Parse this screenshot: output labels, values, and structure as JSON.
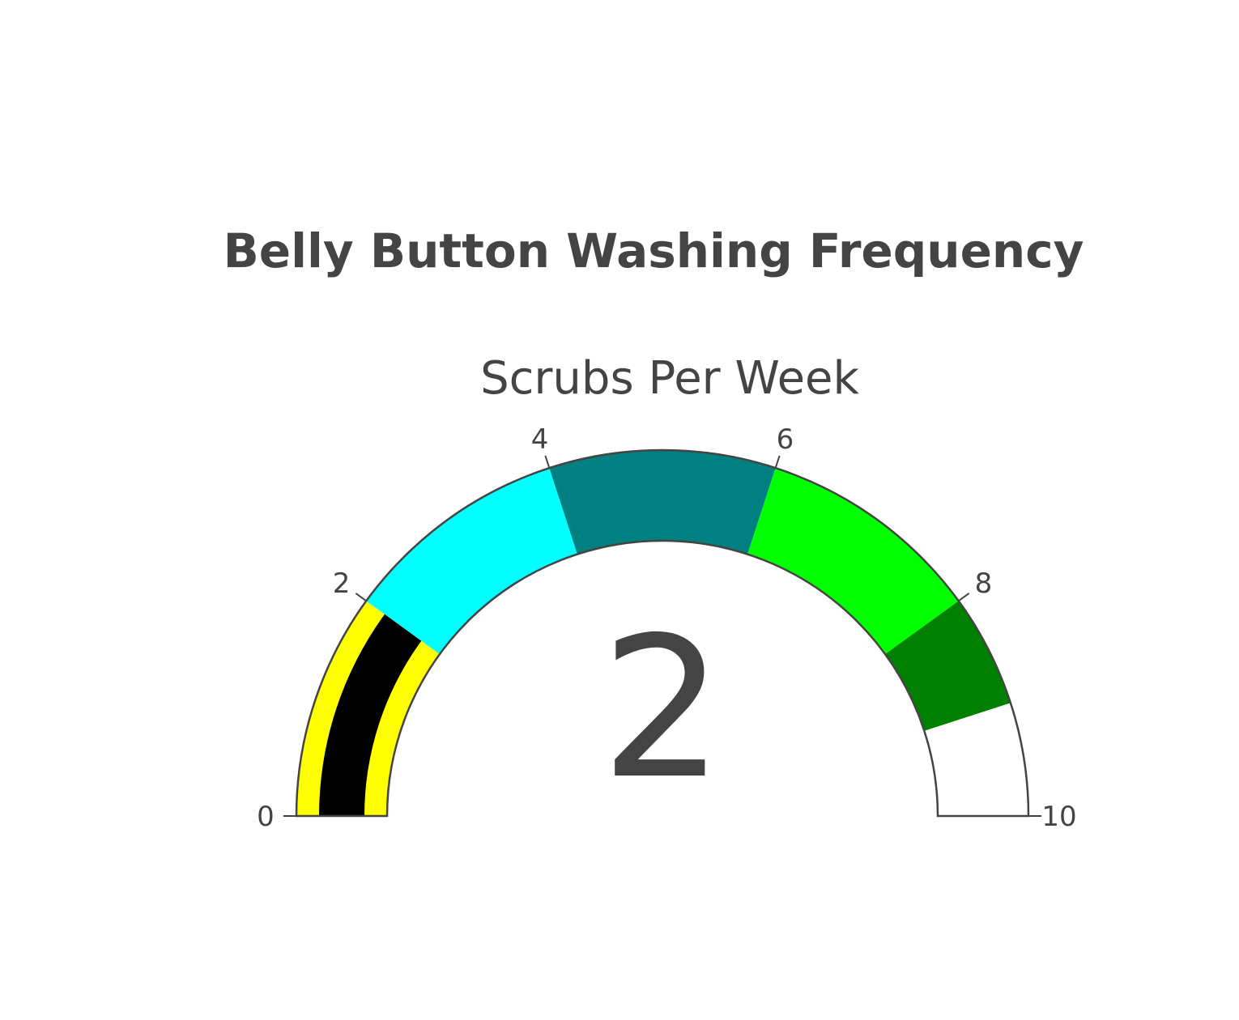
{
  "chart_data": {
    "type": "gauge",
    "title": "Belly Button Washing Frequency",
    "subtitle": "Scrubs Per Week",
    "value": 2,
    "value_label": "2",
    "range": [
      0,
      10
    ],
    "ticks": [
      "0",
      "2",
      "4",
      "6",
      "8",
      "10"
    ],
    "tick_values": [
      0,
      2,
      4,
      6,
      8,
      10
    ],
    "bar_color": "#000000",
    "steps": [
      {
        "range": [
          0,
          2
        ],
        "color": "#ffff00"
      },
      {
        "range": [
          2,
          4
        ],
        "color": "#00ffff"
      },
      {
        "range": [
          4,
          6
        ],
        "color": "#008080"
      },
      {
        "range": [
          6,
          8
        ],
        "color": "#00ff00"
      },
      {
        "range": [
          8,
          9
        ],
        "color": "#008000"
      },
      {
        "range": [
          9,
          10
        ],
        "color": "#ffffff"
      }
    ],
    "outline_color": "#444444"
  }
}
